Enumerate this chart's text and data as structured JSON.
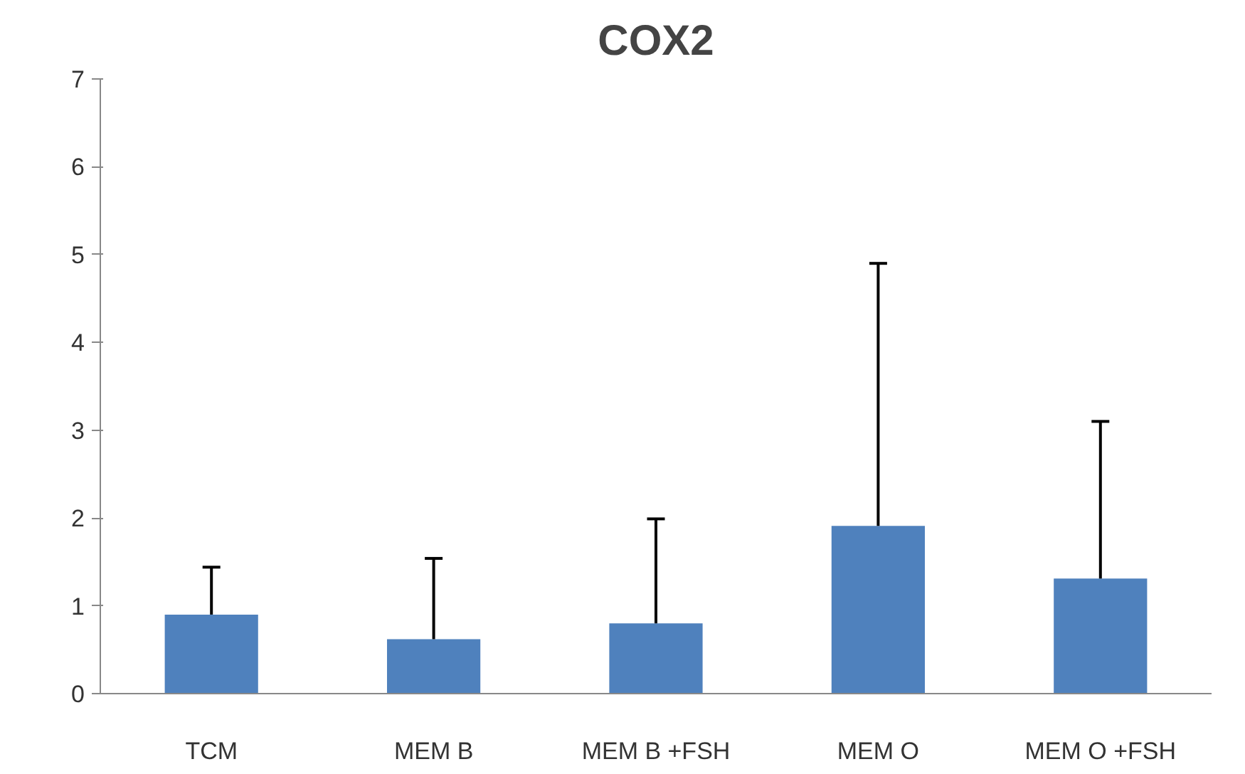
{
  "chart_data": {
    "type": "bar",
    "title": "COX2",
    "categories": [
      "TCM",
      "MEM B",
      "MEM B +FSH",
      "MEM O",
      "MEM O +FSH"
    ],
    "values": [
      0.9,
      0.62,
      0.8,
      1.91,
      1.31
    ],
    "errors": [
      [
        0.9,
        1.44
      ],
      [
        0.62,
        1.54
      ],
      [
        0.8,
        1.99
      ],
      [
        1.91,
        4.9
      ],
      [
        1.31,
        3.1
      ]
    ],
    "color": "#4f81bd",
    "ylim": [
      0,
      7
    ],
    "yticks": [
      0,
      1,
      2,
      3,
      4,
      5,
      6,
      7
    ],
    "grid": false
  }
}
